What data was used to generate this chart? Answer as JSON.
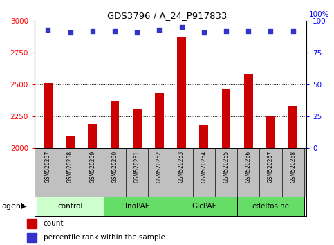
{
  "title": "GDS3796 / A_24_P917833",
  "samples": [
    "GSM520257",
    "GSM520258",
    "GSM520259",
    "GSM520260",
    "GSM520261",
    "GSM520262",
    "GSM520263",
    "GSM520264",
    "GSM520265",
    "GSM520266",
    "GSM520267",
    "GSM520268"
  ],
  "counts": [
    2510,
    2090,
    2190,
    2370,
    2310,
    2430,
    2870,
    2180,
    2460,
    2580,
    2250,
    2330
  ],
  "percentiles": [
    93,
    91,
    92,
    92,
    91,
    93,
    95,
    91,
    92,
    92,
    92,
    92
  ],
  "bar_color": "#cc0000",
  "dot_color": "#3333cc",
  "ylim_left": [
    2000,
    3000
  ],
  "ylim_right": [
    0,
    100
  ],
  "yticks_left": [
    2000,
    2250,
    2500,
    2750,
    3000
  ],
  "yticks_right": [
    0,
    25,
    50,
    75,
    100
  ],
  "grid_lines": [
    2250,
    2500,
    2750
  ],
  "groups": [
    {
      "label": "control",
      "start": 0,
      "end": 3,
      "color": "#ccffcc"
    },
    {
      "label": "InoPAF",
      "start": 3,
      "end": 6,
      "color": "#66dd66"
    },
    {
      "label": "GlcPAF",
      "start": 6,
      "end": 9,
      "color": "#66dd66"
    },
    {
      "label": "edelfosine",
      "start": 9,
      "end": 12,
      "color": "#66dd66"
    }
  ],
  "sample_bg_color": "#c0c0c0",
  "legend_count_label": "count",
  "legend_percentile_label": "percentile rank within the sample",
  "count_color_hex": "#cc0000",
  "percentile_color_hex": "#3333cc",
  "bar_width": 0.4
}
